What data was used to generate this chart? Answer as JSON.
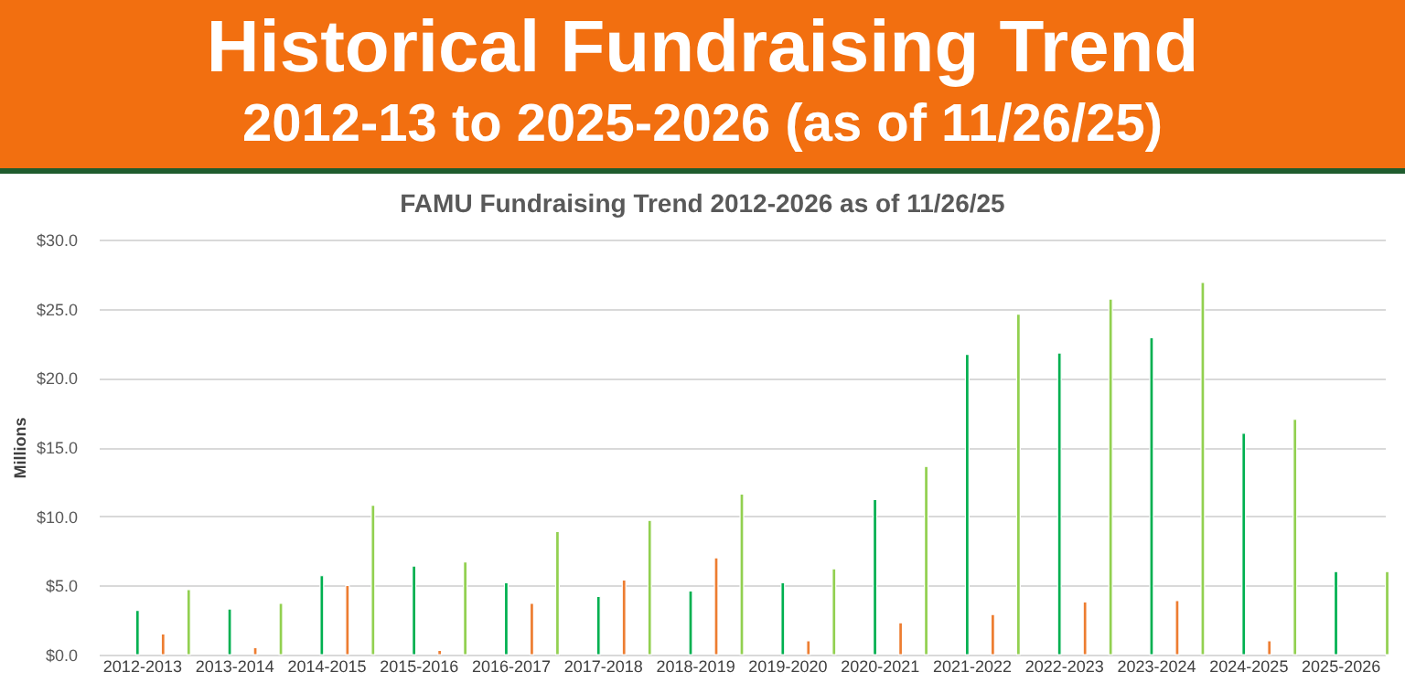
{
  "chart_data": {
    "type": "bar",
    "title": "Historical Fundraising Trend",
    "subtitle": "2012-13 to 2025-2026 (as of 11/26/25)",
    "annotations": [
      "FAMU Fundraising Trend 2012-2026 as of 11/26/25"
    ],
    "ylabel": "Millions",
    "categories": [
      "2012-2013",
      "2013-2014",
      "2014-2015",
      "2015-2016",
      "2016-2017",
      "2017-2018",
      "2018-2019",
      "2019-2020",
      "2020-2021",
      "2021-2022",
      "2022-2023",
      "2023-2024",
      "2024-2025",
      "2025-2026"
    ],
    "series": [
      {
        "color": "#00b050",
        "values": [
          3.2,
          3.3,
          5.7,
          6.4,
          5.2,
          4.2,
          4.6,
          5.2,
          11.2,
          21.7,
          21.8,
          22.9,
          16.0,
          6.0
        ]
      },
      {
        "color": "#ed7d31",
        "values": [
          1.5,
          0.5,
          5.0,
          0.3,
          3.7,
          5.4,
          7.0,
          1.0,
          2.3,
          2.9,
          3.8,
          3.9,
          1.0,
          null
        ]
      },
      {
        "color": "#92d050",
        "values": [
          4.7,
          3.7,
          10.8,
          6.7,
          8.9,
          9.7,
          11.6,
          6.2,
          13.6,
          24.6,
          25.7,
          26.9,
          17.0,
          6.0
        ]
      }
    ],
    "ylim": [
      0,
      30
    ],
    "yticks": [
      {
        "value": 0,
        "label": "$0.0"
      },
      {
        "value": 5,
        "label": "$5.0"
      },
      {
        "value": 10,
        "label": "$10.0"
      },
      {
        "value": 15,
        "label": "$15.0"
      },
      {
        "value": 20,
        "label": "$20.0"
      },
      {
        "value": 25,
        "label": "$25.0"
      },
      {
        "value": 30,
        "label": "$30.0"
      }
    ],
    "grid": "y"
  }
}
